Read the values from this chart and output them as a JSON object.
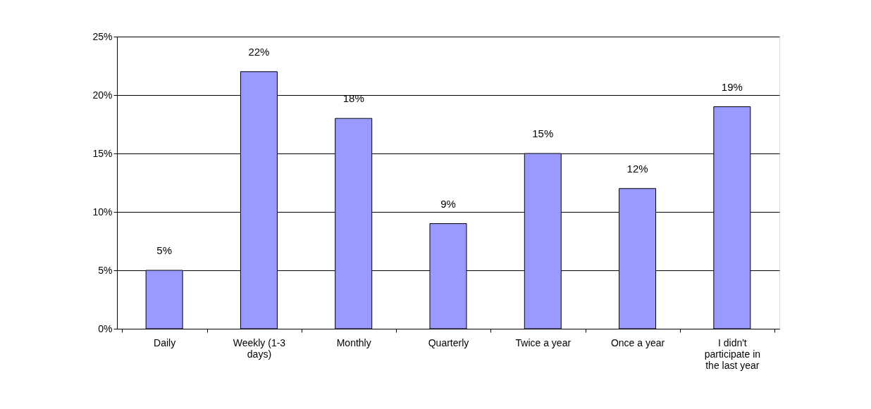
{
  "chart_data": {
    "type": "bar",
    "categories": [
      "Daily",
      "Weekly (1-3 days)",
      "Monthly",
      "Quarterly",
      "Twice a year",
      "Once a year",
      "I didn't participate in the last year"
    ],
    "values": [
      5,
      22,
      18,
      9,
      15,
      12,
      19
    ],
    "value_labels": [
      "5%",
      "22%",
      "18%",
      "9%",
      "15%",
      "12%",
      "19%"
    ],
    "color": "#9999ff",
    "ylim": [
      0,
      25
    ],
    "yticks": [
      {
        "value": 0,
        "label": "0%"
      },
      {
        "value": 5,
        "label": "5%"
      },
      {
        "value": 10,
        "label": "10%"
      },
      {
        "value": 15,
        "label": "15%"
      },
      {
        "value": 20,
        "label": "20%"
      },
      {
        "value": 25,
        "label": "25%"
      }
    ],
    "grid": "y"
  }
}
